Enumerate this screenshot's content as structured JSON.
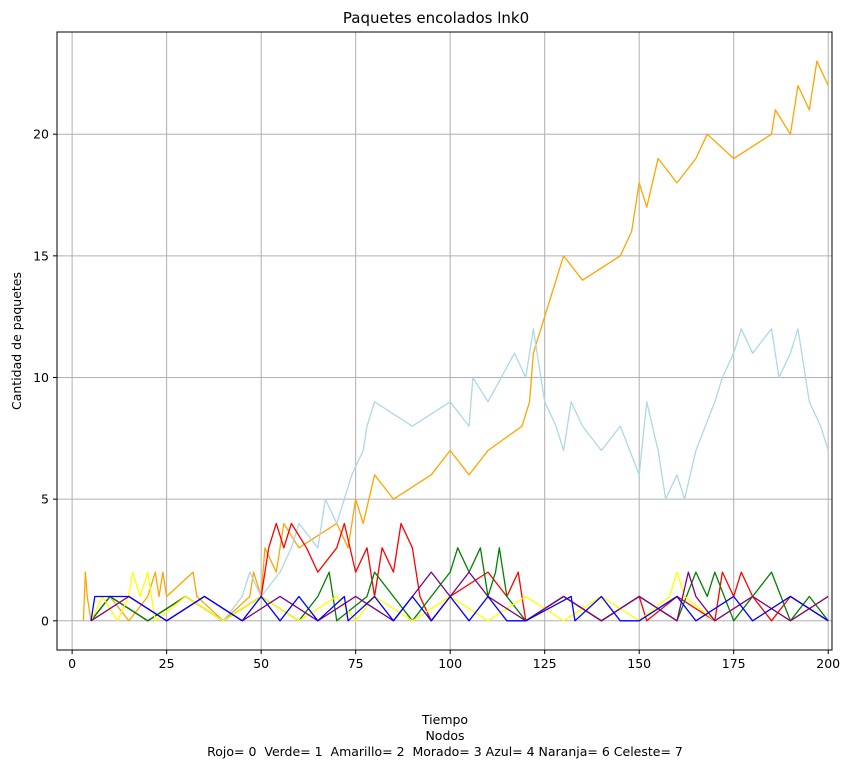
{
  "chart_data": {
    "type": "line",
    "title": "Paquetes encolados lnk0",
    "xlabel_lines": [
      "Tiempo",
      "Nodos",
      "Rojo= 0  Verde= 1  Amarillo= 2  Morado= 3 Azul= 4 Naranja= 6 Celeste= 7"
    ],
    "ylabel": "Cantidad de paquetes",
    "xlim": [
      -4,
      201
    ],
    "ylim": [
      -1.2,
      24.2
    ],
    "x_ticks": [
      0,
      25,
      50,
      75,
      100,
      125,
      150,
      175,
      200
    ],
    "y_ticks": [
      0,
      5,
      10,
      15,
      20
    ],
    "grid": true,
    "series": [
      {
        "color": "#ffa500",
        "points": [
          [
            3,
            0
          ],
          [
            3.5,
            2
          ],
          [
            4,
            1
          ],
          [
            5,
            0
          ],
          [
            10,
            1
          ],
          [
            15,
            0
          ],
          [
            20,
            1
          ],
          [
            22,
            2
          ],
          [
            23,
            1
          ],
          [
            24,
            2
          ],
          [
            25,
            1
          ],
          [
            32,
            2
          ],
          [
            33,
            1
          ],
          [
            40,
            0
          ],
          [
            47,
            1
          ],
          [
            48,
            2
          ],
          [
            50,
            1
          ],
          [
            51,
            3
          ],
          [
            54,
            2
          ],
          [
            56,
            4
          ],
          [
            60,
            3
          ],
          [
            70,
            4
          ],
          [
            73,
            3
          ],
          [
            75,
            5
          ],
          [
            77,
            4
          ],
          [
            80,
            6
          ],
          [
            85,
            5
          ],
          [
            95,
            6
          ],
          [
            100,
            7
          ],
          [
            105,
            6
          ],
          [
            110,
            7
          ],
          [
            119,
            8
          ],
          [
            121,
            9
          ],
          [
            122,
            11
          ],
          [
            124,
            12
          ],
          [
            126,
            13
          ],
          [
            128,
            14
          ],
          [
            130,
            15
          ],
          [
            135,
            14
          ],
          [
            145,
            15
          ],
          [
            148,
            16
          ],
          [
            150,
            18
          ],
          [
            152,
            17
          ],
          [
            155,
            19
          ],
          [
            160,
            18
          ],
          [
            165,
            19
          ],
          [
            168,
            20
          ],
          [
            175,
            19
          ],
          [
            185,
            20
          ],
          [
            186,
            21
          ],
          [
            190,
            20
          ],
          [
            192,
            22
          ],
          [
            195,
            21
          ],
          [
            197,
            23
          ],
          [
            200,
            22
          ]
        ]
      },
      {
        "color": "#add8e6",
        "points": [
          [
            5,
            0
          ],
          [
            10,
            1
          ],
          [
            20,
            0
          ],
          [
            30,
            1
          ],
          [
            40,
            0
          ],
          [
            45,
            1
          ],
          [
            47,
            2
          ],
          [
            50,
            1
          ],
          [
            55,
            2
          ],
          [
            58,
            3
          ],
          [
            60,
            4
          ],
          [
            65,
            3
          ],
          [
            67,
            5
          ],
          [
            70,
            4
          ],
          [
            74,
            6
          ],
          [
            77,
            7
          ],
          [
            78,
            8
          ],
          [
            80,
            9
          ],
          [
            90,
            8
          ],
          [
            100,
            9
          ],
          [
            105,
            8
          ],
          [
            106,
            10
          ],
          [
            110,
            9
          ],
          [
            117,
            11
          ],
          [
            120,
            10
          ],
          [
            122,
            12
          ],
          [
            125,
            9
          ],
          [
            128,
            8
          ],
          [
            130,
            7
          ],
          [
            132,
            9
          ],
          [
            135,
            8
          ],
          [
            140,
            7
          ],
          [
            145,
            8
          ],
          [
            150,
            6
          ],
          [
            152,
            9
          ],
          [
            155,
            7
          ],
          [
            157,
            5
          ],
          [
            160,
            6
          ],
          [
            162,
            5
          ],
          [
            165,
            7
          ],
          [
            170,
            9
          ],
          [
            172,
            10
          ],
          [
            175,
            11
          ],
          [
            177,
            12
          ],
          [
            180,
            11
          ],
          [
            185,
            12
          ],
          [
            187,
            10
          ],
          [
            190,
            11
          ],
          [
            192,
            12
          ],
          [
            195,
            9
          ],
          [
            198,
            8
          ],
          [
            200,
            7
          ]
        ]
      },
      {
        "color": "#ff0000",
        "points": [
          [
            5,
            0
          ],
          [
            10,
            1
          ],
          [
            20,
            0
          ],
          [
            30,
            1
          ],
          [
            40,
            0
          ],
          [
            50,
            1
          ],
          [
            52,
            3
          ],
          [
            54,
            4
          ],
          [
            56,
            3
          ],
          [
            58,
            4
          ],
          [
            62,
            3
          ],
          [
            65,
            2
          ],
          [
            70,
            3
          ],
          [
            72,
            4
          ],
          [
            75,
            2
          ],
          [
            78,
            3
          ],
          [
            80,
            1
          ],
          [
            82,
            3
          ],
          [
            85,
            2
          ],
          [
            87,
            4
          ],
          [
            90,
            3
          ],
          [
            92,
            1
          ],
          [
            95,
            0
          ],
          [
            100,
            1
          ],
          [
            110,
            2
          ],
          [
            115,
            1
          ],
          [
            118,
            2
          ],
          [
            120,
            0
          ],
          [
            130,
            1
          ],
          [
            140,
            0
          ],
          [
            150,
            1
          ],
          [
            152,
            0
          ],
          [
            160,
            1
          ],
          [
            170,
            0
          ],
          [
            172,
            2
          ],
          [
            175,
            1
          ],
          [
            177,
            2
          ],
          [
            180,
            1
          ],
          [
            185,
            0
          ],
          [
            190,
            1
          ],
          [
            200,
            0
          ]
        ]
      },
      {
        "color": "#008000",
        "points": [
          [
            5,
            0
          ],
          [
            10,
            1
          ],
          [
            20,
            0
          ],
          [
            30,
            1
          ],
          [
            40,
            0
          ],
          [
            50,
            1
          ],
          [
            60,
            0
          ],
          [
            65,
            1
          ],
          [
            68,
            2
          ],
          [
            70,
            0
          ],
          [
            78,
            1
          ],
          [
            80,
            2
          ],
          [
            85,
            1
          ],
          [
            90,
            0
          ],
          [
            95,
            1
          ],
          [
            100,
            2
          ],
          [
            102,
            3
          ],
          [
            105,
            2
          ],
          [
            108,
            3
          ],
          [
            110,
            1
          ],
          [
            112,
            2
          ],
          [
            113,
            3
          ],
          [
            115,
            1
          ],
          [
            120,
            0
          ],
          [
            130,
            1
          ],
          [
            140,
            0
          ],
          [
            150,
            1
          ],
          [
            160,
            0
          ],
          [
            165,
            2
          ],
          [
            168,
            1
          ],
          [
            170,
            2
          ],
          [
            175,
            0
          ],
          [
            180,
            1
          ],
          [
            185,
            2
          ],
          [
            190,
            0
          ],
          [
            195,
            1
          ],
          [
            200,
            0
          ]
        ]
      },
      {
        "color": "#ffff00",
        "points": [
          [
            5,
            0
          ],
          [
            8,
            1
          ],
          [
            12,
            0
          ],
          [
            15,
            1
          ],
          [
            16,
            2
          ],
          [
            18,
            1
          ],
          [
            20,
            2
          ],
          [
            22,
            0
          ],
          [
            30,
            1
          ],
          [
            40,
            0
          ],
          [
            50,
            1
          ],
          [
            60,
            0
          ],
          [
            70,
            1
          ],
          [
            75,
            0
          ],
          [
            80,
            1
          ],
          [
            90,
            0
          ],
          [
            100,
            1
          ],
          [
            110,
            0
          ],
          [
            120,
            1
          ],
          [
            130,
            0
          ],
          [
            140,
            1
          ],
          [
            150,
            0
          ],
          [
            158,
            1
          ],
          [
            160,
            2
          ],
          [
            162,
            1
          ],
          [
            170,
            0
          ],
          [
            180,
            1
          ],
          [
            190,
            0
          ],
          [
            200,
            1
          ]
        ]
      },
      {
        "color": "#800080",
        "points": [
          [
            5,
            0
          ],
          [
            15,
            1
          ],
          [
            25,
            0
          ],
          [
            35,
            1
          ],
          [
            45,
            0
          ],
          [
            55,
            1
          ],
          [
            65,
            0
          ],
          [
            75,
            1
          ],
          [
            85,
            0
          ],
          [
            90,
            1
          ],
          [
            95,
            2
          ],
          [
            100,
            1
          ],
          [
            105,
            2
          ],
          [
            110,
            1
          ],
          [
            120,
            0
          ],
          [
            130,
            1
          ],
          [
            140,
            0
          ],
          [
            150,
            1
          ],
          [
            160,
            0
          ],
          [
            163,
            2
          ],
          [
            165,
            1
          ],
          [
            170,
            0
          ],
          [
            180,
            1
          ],
          [
            190,
            0
          ],
          [
            200,
            1
          ]
        ]
      },
      {
        "color": "#0000ff",
        "points": [
          [
            5,
            0
          ],
          [
            6,
            1
          ],
          [
            15,
            1
          ],
          [
            25,
            0
          ],
          [
            35,
            1
          ],
          [
            45,
            0
          ],
          [
            50,
            1
          ],
          [
            55,
            0
          ],
          [
            60,
            1
          ],
          [
            65,
            0
          ],
          [
            72,
            1
          ],
          [
            73,
            0
          ],
          [
            80,
            1
          ],
          [
            85,
            0
          ],
          [
            90,
            1
          ],
          [
            95,
            0
          ],
          [
            100,
            1
          ],
          [
            105,
            0
          ],
          [
            110,
            1
          ],
          [
            115,
            0
          ],
          [
            120,
            0
          ],
          [
            132,
            1
          ],
          [
            133,
            0
          ],
          [
            140,
            1
          ],
          [
            145,
            0
          ],
          [
            150,
            0
          ],
          [
            160,
            1
          ],
          [
            165,
            0
          ],
          [
            175,
            1
          ],
          [
            180,
            0
          ],
          [
            190,
            1
          ],
          [
            200,
            0
          ]
        ]
      }
    ]
  }
}
